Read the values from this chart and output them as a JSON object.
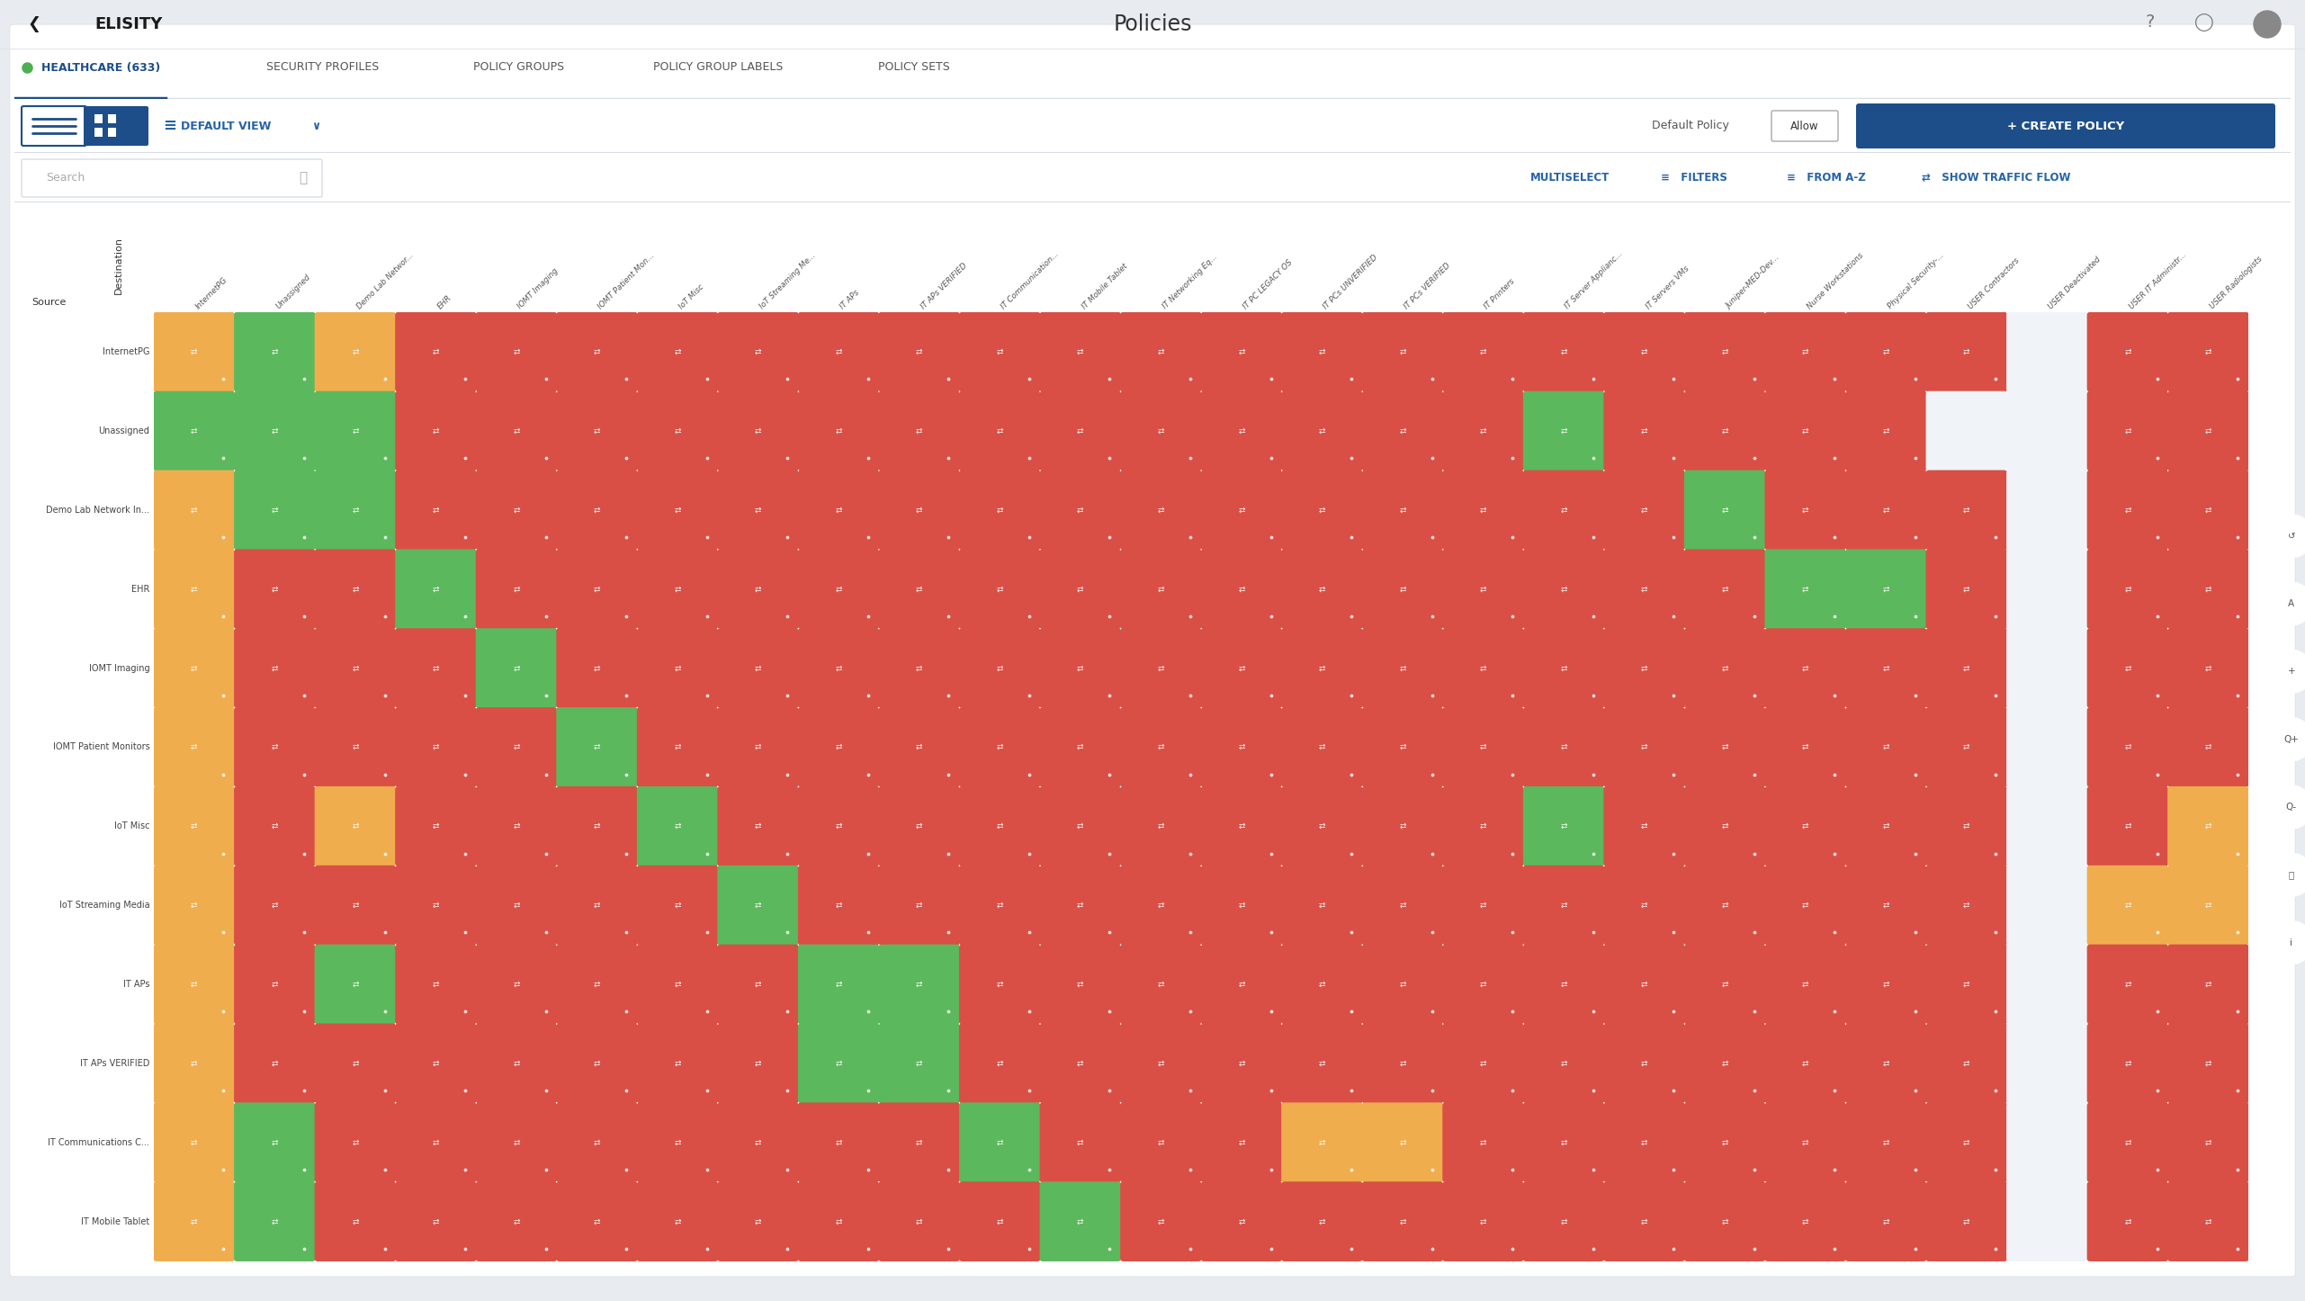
{
  "title": "Policies",
  "tabs": [
    "HEALTHCARE (633)",
    "SECURITY PROFILES",
    "POLICY GROUPS",
    "POLICY GROUP LABELS",
    "POLICY SETS"
  ],
  "create_button": "+ CREATE POLICY",
  "col_labels": [
    "InternetPG",
    "Unassigned",
    "Demo Lab Networ...",
    "EHR",
    "IOMT Imaging",
    "IOMT Patient Mon...",
    "IoT Misc",
    "IoT Streaming Me...",
    "IT APs",
    "IT APs VERIFIED",
    "IT Communication...",
    "IT Mobile Tablet",
    "IT Networking Eq...",
    "IT PC LEGACY OS",
    "IT PCs UNVERIFIED",
    "IT PCs VERIFIED",
    "IT Printers",
    "IT Server Applianc...",
    "IT Servers VMs",
    "Juniper-MED-Dev...",
    "Nurse Workstations",
    "Physical Security-...",
    "USER Contractors",
    "USER Deactivated",
    "USER IT Administr...",
    "USER Radiologists"
  ],
  "row_labels": [
    "InternetPG",
    "Unassigned",
    "Demo Lab Network In...",
    "EHR",
    "IOMT Imaging",
    "IOMT Patient Monitors",
    "IoT Misc",
    "IoT Streaming Media",
    "IT APs",
    "IT APs VERIFIED",
    "IT Communications C...",
    "IT Mobile Tablet"
  ],
  "matrix": [
    [
      "Y",
      "G",
      "Y",
      "R",
      "R",
      "R",
      "R",
      "R",
      "R",
      "R",
      "R",
      "R",
      "R",
      "R",
      "R",
      "R",
      "R",
      "R",
      "R",
      "R",
      "R",
      "R",
      "R",
      "W",
      "R",
      "R"
    ],
    [
      "G",
      "G",
      "G",
      "R",
      "R",
      "R",
      "R",
      "R",
      "R",
      "R",
      "R",
      "R",
      "R",
      "R",
      "R",
      "R",
      "R",
      "G",
      "R",
      "R",
      "R",
      "R",
      "W",
      "W",
      "R",
      "R"
    ],
    [
      "Y",
      "G",
      "G",
      "R",
      "R",
      "R",
      "R",
      "R",
      "R",
      "R",
      "R",
      "R",
      "R",
      "R",
      "R",
      "R",
      "R",
      "R",
      "R",
      "G",
      "R",
      "R",
      "R",
      "W",
      "R",
      "R"
    ],
    [
      "Y",
      "R",
      "R",
      "G",
      "R",
      "R",
      "R",
      "R",
      "R",
      "R",
      "R",
      "R",
      "R",
      "R",
      "R",
      "R",
      "R",
      "R",
      "R",
      "R",
      "G",
      "G",
      "R",
      "W",
      "R",
      "R"
    ],
    [
      "Y",
      "R",
      "R",
      "R",
      "G",
      "R",
      "R",
      "R",
      "R",
      "R",
      "R",
      "R",
      "R",
      "R",
      "R",
      "R",
      "R",
      "R",
      "R",
      "R",
      "R",
      "R",
      "R",
      "W",
      "R",
      "R"
    ],
    [
      "Y",
      "R",
      "R",
      "R",
      "R",
      "G",
      "R",
      "R",
      "R",
      "R",
      "R",
      "R",
      "R",
      "R",
      "R",
      "R",
      "R",
      "R",
      "R",
      "R",
      "R",
      "R",
      "R",
      "W",
      "R",
      "R"
    ],
    [
      "Y",
      "R",
      "Y",
      "R",
      "R",
      "R",
      "G",
      "R",
      "R",
      "R",
      "R",
      "R",
      "R",
      "R",
      "R",
      "R",
      "R",
      "G",
      "R",
      "R",
      "R",
      "R",
      "R",
      "W",
      "R",
      "Y"
    ],
    [
      "Y",
      "R",
      "R",
      "R",
      "R",
      "R",
      "R",
      "G",
      "R",
      "R",
      "R",
      "R",
      "R",
      "R",
      "R",
      "R",
      "R",
      "R",
      "R",
      "R",
      "R",
      "R",
      "R",
      "W",
      "Y",
      "Y"
    ],
    [
      "Y",
      "R",
      "G",
      "R",
      "R",
      "R",
      "R",
      "R",
      "G",
      "G",
      "R",
      "R",
      "R",
      "R",
      "R",
      "R",
      "R",
      "R",
      "R",
      "R",
      "R",
      "R",
      "R",
      "W",
      "R",
      "R"
    ],
    [
      "Y",
      "R",
      "R",
      "R",
      "R",
      "R",
      "R",
      "R",
      "G",
      "G",
      "R",
      "R",
      "R",
      "R",
      "R",
      "R",
      "R",
      "R",
      "R",
      "R",
      "R",
      "R",
      "R",
      "W",
      "R",
      "R"
    ],
    [
      "Y",
      "G",
      "R",
      "R",
      "R",
      "R",
      "R",
      "R",
      "R",
      "R",
      "G",
      "R",
      "R",
      "R",
      "Y",
      "Y",
      "R",
      "R",
      "R",
      "R",
      "R",
      "R",
      "R",
      "W",
      "R",
      "R"
    ],
    [
      "Y",
      "G",
      "R",
      "R",
      "R",
      "R",
      "R",
      "R",
      "R",
      "R",
      "R",
      "G",
      "R",
      "R",
      "R",
      "R",
      "R",
      "R",
      "R",
      "R",
      "R",
      "R",
      "R",
      "W",
      "R",
      "R"
    ]
  ],
  "bg_color": "#e8ecf0",
  "panel_bg": "#ffffff",
  "cell_bg": "#f4f6f8",
  "color_R": "#d94f45",
  "color_G": "#5cb85c",
  "color_Y": "#f0ad4e",
  "color_W": "#f0f4f8",
  "blue_dark": "#1d4e89",
  "blue_mid": "#2563a8",
  "green_tab": "#4caf50",
  "text_dark": "#333333",
  "text_gray": "#666666",
  "text_light": "#999999",
  "border": "#d8dde3",
  "icon_panel_bg": "#f4f6f8",
  "header_line": "#e0e4e8"
}
